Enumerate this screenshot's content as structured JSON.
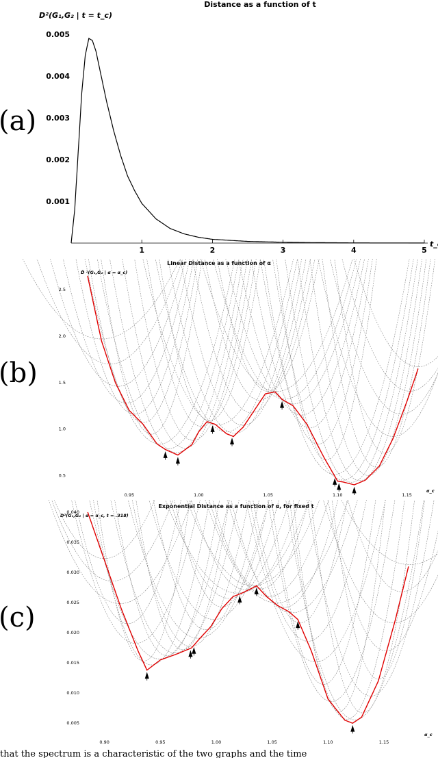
{
  "chart_data": [
    {
      "panel": "(a)",
      "type": "line",
      "title": "Distance as a function of t",
      "ylabel": "D²(G₁,G₂ | t = t_c)",
      "xlabel": "t_c",
      "xlim": [
        0,
        5
      ],
      "ylim": [
        0,
        0.005
      ],
      "xticks": [
        "1",
        "2",
        "3",
        "4",
        "5"
      ],
      "yticks": [
        "0.001",
        "0.002",
        "0.003",
        "0.004",
        "0.005"
      ],
      "series": [
        {
          "x": [
            0.0,
            0.05,
            0.1,
            0.15,
            0.2,
            0.25,
            0.3,
            0.35,
            0.4,
            0.45,
            0.5,
            0.6,
            0.7,
            0.8,
            0.9,
            1.0,
            1.2,
            1.4,
            1.6,
            1.8,
            2.0,
            2.5,
            3.0,
            3.5,
            4.0,
            4.5,
            5.0
          ],
          "values": [
            0.0,
            0.0008,
            0.0022,
            0.0036,
            0.0045,
            0.0049,
            0.00485,
            0.0046,
            0.0042,
            0.0038,
            0.0034,
            0.0027,
            0.0021,
            0.0016,
            0.00125,
            0.00095,
            0.00058,
            0.00035,
            0.00022,
            0.00014,
            9e-05,
            4e-05,
            2e-05,
            1e-05,
            5e-06,
            3e-06,
            2e-06
          ]
        }
      ]
    },
    {
      "panel": "(b)",
      "type": "line",
      "title": "Linear Distance as a function of α",
      "ylabel": "D̃ ²(G₁,G₂ | α = α_c)",
      "xlabel": "α_c",
      "xlim": [
        0.92,
        1.16
      ],
      "ylim": [
        0.4,
        2.7
      ],
      "xticks": [
        "0.95",
        "1.00",
        "1.05",
        "1.10",
        "1.15"
      ],
      "yticks": [
        "0.5",
        "1.0",
        "1.5",
        "2.0",
        "2.5"
      ],
      "series": [
        {
          "name": "envelope",
          "color": "#e00000",
          "x": [
            0.92,
            0.93,
            0.94,
            0.95,
            0.96,
            0.97,
            0.976,
            0.985,
            0.995,
            1.0,
            1.006,
            1.012,
            1.02,
            1.025,
            1.032,
            1.04,
            1.048,
            1.055,
            1.06,
            1.068,
            1.078,
            1.09,
            1.1,
            1.104,
            1.112,
            1.12,
            1.13,
            1.14,
            1.15,
            1.158
          ],
          "values": [
            2.65,
            1.95,
            1.5,
            1.2,
            1.05,
            0.84,
            0.78,
            0.72,
            0.83,
            0.97,
            1.08,
            1.05,
            0.95,
            0.92,
            1.02,
            1.2,
            1.38,
            1.4,
            1.32,
            1.25,
            1.05,
            0.7,
            0.44,
            0.43,
            0.4,
            0.45,
            0.6,
            0.9,
            1.3,
            1.65
          ]
        }
      ],
      "markers_x": [
        0.976,
        0.985,
        1.01,
        1.024,
        1.06,
        1.098,
        1.101,
        1.112
      ]
    },
    {
      "panel": "(c)",
      "type": "line",
      "title": "Exponential Distance as a function of α, for fixed t",
      "ylabel": "D²(G₁,G₂ | α = α_c, t = .318)",
      "xlabel": "α_c",
      "xlim": [
        0.88,
        1.18
      ],
      "ylim": [
        0.004,
        0.04
      ],
      "xticks": [
        "0.90",
        "0.95",
        "1.00",
        "1.05",
        "1.10",
        "1.15"
      ],
      "yticks": [
        "0.005",
        "0.010",
        "0.015",
        "0.020",
        "0.025",
        "0.030",
        "0.035",
        "0.040"
      ],
      "series": [
        {
          "name": "envelope",
          "color": "#e00000",
          "x": [
            0.885,
            0.9,
            0.915,
            0.93,
            0.938,
            0.95,
            0.965,
            0.978,
            0.985,
            0.995,
            1.005,
            1.015,
            1.022,
            1.03,
            1.036,
            1.045,
            1.055,
            1.065,
            1.073,
            1.085,
            1.1,
            1.115,
            1.122,
            1.13,
            1.145,
            1.16,
            1.172
          ],
          "values": [
            0.04,
            0.032,
            0.024,
            0.017,
            0.0138,
            0.0155,
            0.0165,
            0.0175,
            0.019,
            0.021,
            0.024,
            0.026,
            0.0265,
            0.0272,
            0.0278,
            0.026,
            0.0245,
            0.0235,
            0.0222,
            0.017,
            0.009,
            0.0055,
            0.005,
            0.006,
            0.012,
            0.022,
            0.031
          ]
        }
      ],
      "markers_x": [
        0.938,
        0.977,
        0.98,
        1.021,
        1.036,
        1.073,
        1.122
      ]
    }
  ],
  "labels": {
    "a": "(a)",
    "b": "(b)",
    "c": "(c)"
  },
  "caption": "that the spectrum is a characteristic of the two graphs and the time"
}
